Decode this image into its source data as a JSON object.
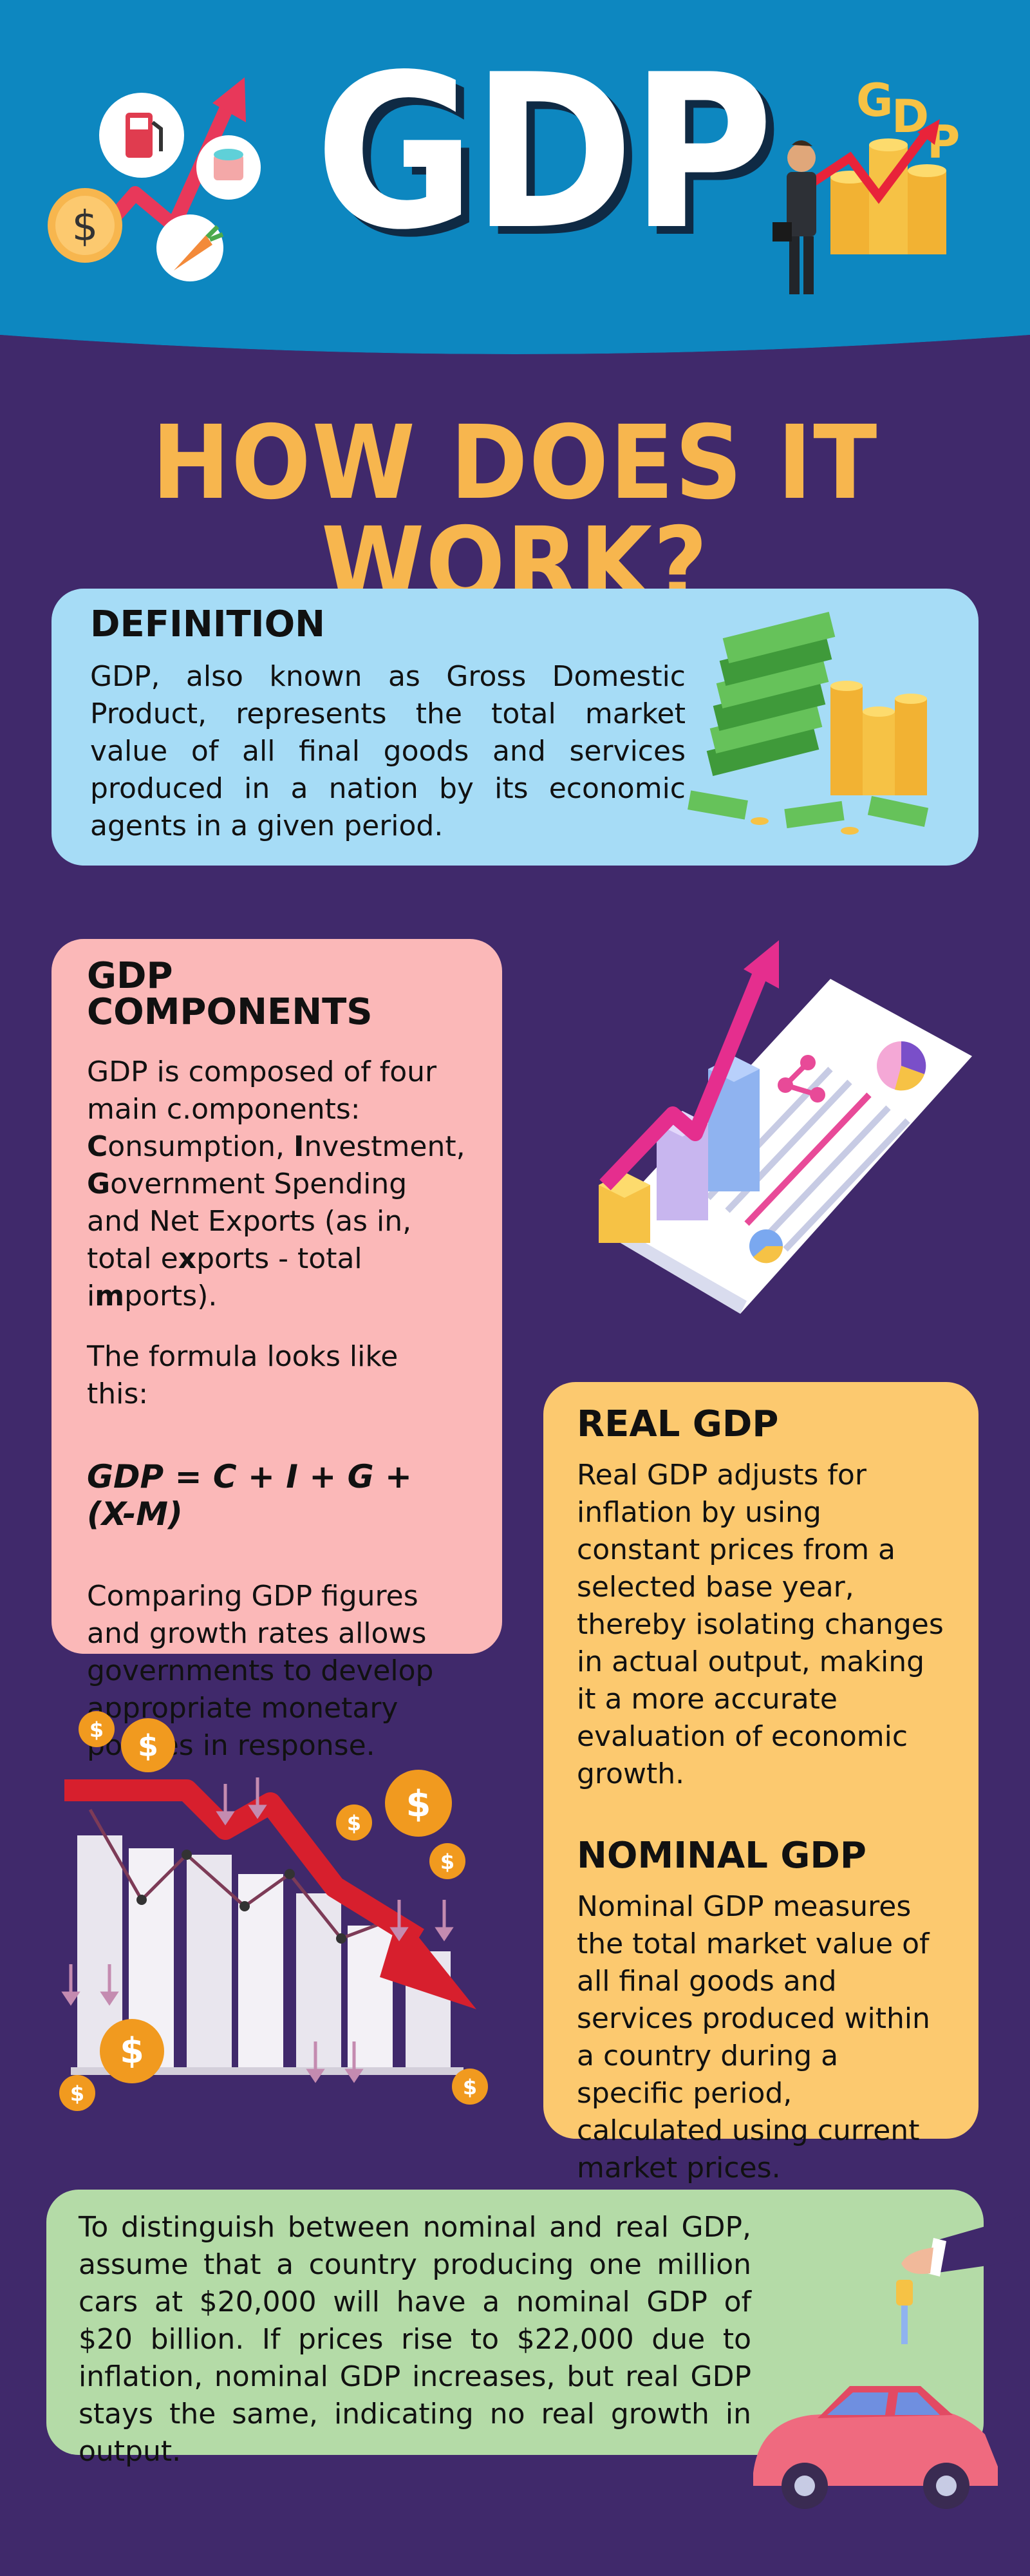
{
  "header": {
    "title": "GDP",
    "icons": [
      "gas-pump-icon",
      "dollar-coin-icon",
      "coins-stack-icon",
      "carrot-icon",
      "growth-arrow-icon",
      "businessman-icon"
    ]
  },
  "subtitle": "HOW DOES IT WORK?",
  "definition": {
    "heading": "DEFINITION",
    "text": "GDP, also known as Gross Domestic Product, represents the total market value of all final goods and services produced in a nation by its economic agents in a given period."
  },
  "components": {
    "heading": "GDP COMPONENTS",
    "intro": "main c.omponents:",
    "intro_prefix": "GDP is composed of four",
    "letters": [
      {
        "bold": "C",
        "rest": "onsumption, "
      },
      {
        "bold": "I",
        "rest": "nvestment, "
      },
      {
        "bold": "G",
        "rest": "overnment Spending and Net Exports (as in, total e"
      },
      {
        "bold": "x",
        "rest": "ports - total i"
      },
      {
        "bold": "m",
        "rest": "ports)."
      }
    ],
    "formula_intro": "The formula looks like this:",
    "formula": "GDP = C + I + G + (X-M)",
    "closing": "Comparing GDP figures and growth rates allows governments to develop appropriate monetary policies in response."
  },
  "real_gdp": {
    "heading": "REAL GDP",
    "text": "Real GDP adjusts for inflation by using constant prices from a selected base year, thereby isolating changes in actual output, making it a more accurate evaluation of economic growth."
  },
  "nominal_gdp": {
    "heading": "NOMINAL GDP",
    "text": "Nominal GDP measures the total market value of all final goods and services produced within a country during a specific period, calculated using current market prices."
  },
  "example": {
    "text": "To distinguish between nominal and real GDP, assume that a country producing one million cars at $20,000 will have a nominal GDP of $20 billion. If prices rise to $22,000 due to inflation, nominal GDP increases, but real GDP stays the same, indicating no real growth in output."
  },
  "colors": {
    "background": "#40296b",
    "header_blue": "#0d87c0",
    "accent_yellow": "#f7b64e",
    "definition_card": "#a6dcf6",
    "components_card": "#fbb8b8",
    "real_card": "#fcc96f",
    "example_card": "#b4dba7"
  }
}
